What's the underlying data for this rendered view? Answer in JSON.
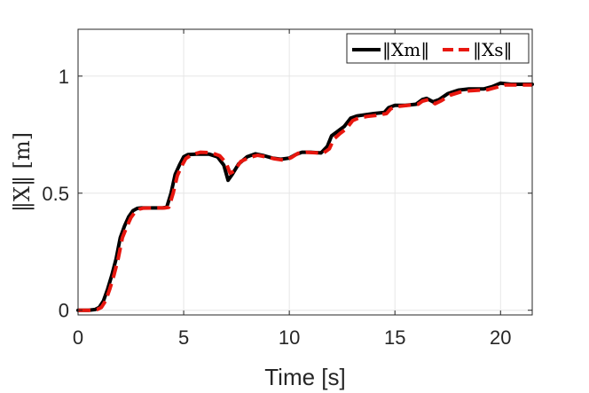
{
  "chart_data": {
    "type": "line",
    "xlabel": "Time [s]",
    "ylabel": "‖X‖ [m]",
    "xlim": [
      0,
      21.5
    ],
    "ylim": [
      -0.02,
      1.2
    ],
    "xticks": [
      0,
      5,
      10,
      15,
      20
    ],
    "xtick_labels": [
      "0",
      "5",
      "10",
      "15",
      "20"
    ],
    "yticks": [
      0,
      0.5,
      1
    ],
    "ytick_labels": [
      "0",
      "0.5",
      "1"
    ],
    "grid": true,
    "legend_position": "top-right",
    "series": [
      {
        "name": "‖Xm‖",
        "color": "#000000",
        "style": "solid",
        "points": [
          [
            0,
            0
          ],
          [
            0.5,
            0
          ],
          [
            0.8,
            0.003
          ],
          [
            1.0,
            0.012
          ],
          [
            1.2,
            0.04
          ],
          [
            1.4,
            0.09
          ],
          [
            1.6,
            0.15
          ],
          [
            1.8,
            0.22
          ],
          [
            2.0,
            0.31
          ],
          [
            2.2,
            0.36
          ],
          [
            2.4,
            0.4
          ],
          [
            2.6,
            0.425
          ],
          [
            2.8,
            0.435
          ],
          [
            3.0,
            0.437
          ],
          [
            3.5,
            0.437
          ],
          [
            4.0,
            0.437
          ],
          [
            4.2,
            0.44
          ],
          [
            4.4,
            0.5
          ],
          [
            4.6,
            0.58
          ],
          [
            4.8,
            0.62
          ],
          [
            5.0,
            0.655
          ],
          [
            5.2,
            0.665
          ],
          [
            5.6,
            0.667
          ],
          [
            6.2,
            0.667
          ],
          [
            6.6,
            0.655
          ],
          [
            6.9,
            0.62
          ],
          [
            7.1,
            0.555
          ],
          [
            7.3,
            0.58
          ],
          [
            7.6,
            0.625
          ],
          [
            8.0,
            0.655
          ],
          [
            8.4,
            0.668
          ],
          [
            8.8,
            0.66
          ],
          [
            9.2,
            0.65
          ],
          [
            9.6,
            0.645
          ],
          [
            10.0,
            0.65
          ],
          [
            10.3,
            0.665
          ],
          [
            10.6,
            0.675
          ],
          [
            11.0,
            0.675
          ],
          [
            11.5,
            0.672
          ],
          [
            11.8,
            0.7
          ],
          [
            12.0,
            0.745
          ],
          [
            12.3,
            0.765
          ],
          [
            12.6,
            0.785
          ],
          [
            12.9,
            0.82
          ],
          [
            13.2,
            0.83
          ],
          [
            13.6,
            0.835
          ],
          [
            14.0,
            0.84
          ],
          [
            14.5,
            0.845
          ],
          [
            14.7,
            0.865
          ],
          [
            15.0,
            0.875
          ],
          [
            15.5,
            0.875
          ],
          [
            16.0,
            0.88
          ],
          [
            16.3,
            0.9
          ],
          [
            16.5,
            0.905
          ],
          [
            16.8,
            0.89
          ],
          [
            17.1,
            0.9
          ],
          [
            17.5,
            0.925
          ],
          [
            18.0,
            0.94
          ],
          [
            18.5,
            0.945
          ],
          [
            18.8,
            0.945
          ],
          [
            19.2,
            0.945
          ],
          [
            19.6,
            0.955
          ],
          [
            20.0,
            0.97
          ],
          [
            20.5,
            0.965
          ],
          [
            21.0,
            0.965
          ],
          [
            21.5,
            0.965
          ]
        ]
      },
      {
        "name": "‖Xs‖",
        "color": "#e8170f",
        "style": "dashed",
        "points": [
          [
            0,
            0
          ],
          [
            0.6,
            0
          ],
          [
            0.9,
            0.003
          ],
          [
            1.1,
            0.012
          ],
          [
            1.3,
            0.04
          ],
          [
            1.5,
            0.09
          ],
          [
            1.7,
            0.15
          ],
          [
            1.9,
            0.22
          ],
          [
            2.1,
            0.31
          ],
          [
            2.3,
            0.355
          ],
          [
            2.5,
            0.395
          ],
          [
            2.7,
            0.42
          ],
          [
            2.9,
            0.432
          ],
          [
            3.1,
            0.436
          ],
          [
            3.6,
            0.437
          ],
          [
            4.1,
            0.437
          ],
          [
            4.3,
            0.44
          ],
          [
            4.5,
            0.5
          ],
          [
            4.7,
            0.575
          ],
          [
            4.9,
            0.615
          ],
          [
            5.1,
            0.648
          ],
          [
            5.4,
            0.665
          ],
          [
            5.8,
            0.675
          ],
          [
            6.3,
            0.673
          ],
          [
            6.7,
            0.66
          ],
          [
            7.0,
            0.63
          ],
          [
            7.2,
            0.585
          ],
          [
            7.4,
            0.595
          ],
          [
            7.7,
            0.635
          ],
          [
            8.1,
            0.652
          ],
          [
            8.5,
            0.662
          ],
          [
            8.9,
            0.655
          ],
          [
            9.3,
            0.647
          ],
          [
            9.8,
            0.64
          ],
          [
            10.1,
            0.652
          ],
          [
            10.4,
            0.67
          ],
          [
            10.8,
            0.675
          ],
          [
            11.2,
            0.673
          ],
          [
            11.6,
            0.67
          ],
          [
            11.9,
            0.69
          ],
          [
            12.1,
            0.73
          ],
          [
            12.4,
            0.755
          ],
          [
            12.7,
            0.775
          ],
          [
            13.0,
            0.81
          ],
          [
            13.3,
            0.822
          ],
          [
            13.7,
            0.828
          ],
          [
            14.1,
            0.832
          ],
          [
            14.6,
            0.84
          ],
          [
            14.8,
            0.86
          ],
          [
            15.1,
            0.87
          ],
          [
            15.6,
            0.875
          ],
          [
            16.1,
            0.88
          ],
          [
            16.3,
            0.893
          ],
          [
            16.6,
            0.9
          ],
          [
            16.9,
            0.882
          ],
          [
            17.2,
            0.895
          ],
          [
            17.6,
            0.918
          ],
          [
            18.1,
            0.932
          ],
          [
            18.6,
            0.938
          ],
          [
            19.0,
            0.94
          ],
          [
            19.4,
            0.942
          ],
          [
            19.8,
            0.952
          ],
          [
            20.2,
            0.962
          ],
          [
            20.6,
            0.962
          ],
          [
            21.0,
            0.962
          ],
          [
            21.5,
            0.962
          ]
        ]
      }
    ]
  }
}
